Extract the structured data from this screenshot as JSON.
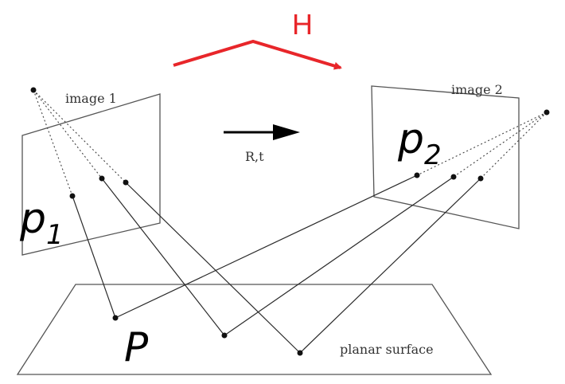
{
  "labels": {
    "image1": "image 1",
    "image2": "image 2",
    "rt": "R,t",
    "planar_surface": "planar surface",
    "homography": "H",
    "p1_base": "p",
    "p1_sub": "1",
    "p2_base": "p",
    "p2_sub": "2",
    "world_point": "P"
  },
  "colors": {
    "homography_arrow": "#e8262a",
    "lines": "#333333"
  }
}
